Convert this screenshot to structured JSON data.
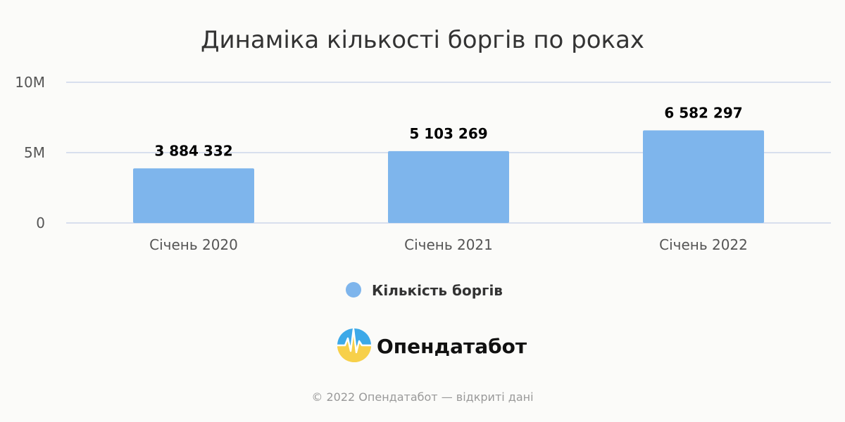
{
  "chart_data": {
    "type": "bar",
    "title": "Динаміка кількості боргів по роках",
    "categories": [
      "Січень 2020",
      "Січень 2021",
      "Січень 2022"
    ],
    "series": [
      {
        "name": "Кількість боргів",
        "values": [
          3884332,
          5103269,
          6582297
        ],
        "data_labels": [
          "3 884 332",
          "5 103 269",
          "6 582 297"
        ]
      }
    ],
    "xlabel": "",
    "ylabel": "",
    "ylim": [
      0,
      10000000
    ],
    "yticks": [
      0,
      5000000,
      10000000
    ],
    "ytick_labels": [
      "0",
      "5M",
      "10M"
    ],
    "grid": true,
    "legend_position": "bottom-center",
    "colors": {
      "bar": "#7eb5ec",
      "grid": "#ccd6eb"
    }
  },
  "brand": {
    "name": "Опендатабот",
    "logo_icon": "opendatabot-logo-icon"
  },
  "footer": {
    "text": "© 2022 Опендатабот — відкриті дані"
  }
}
